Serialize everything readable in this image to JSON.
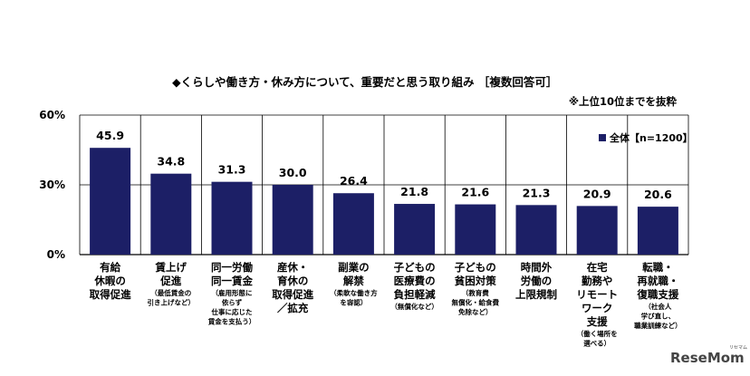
{
  "chart_data": {
    "type": "bar",
    "title": "◆くらしや働き方・休み方について、重要だと思う取り組み ［複数回答可］",
    "note": "※上位10位までを抜粋",
    "ylim": [
      0,
      60
    ],
    "yticks": [
      "0%",
      "30%",
      "60%"
    ],
    "ytick_values": [
      0,
      30,
      60
    ],
    "legend": "全体【n=1200】",
    "legend_placement": "top-right",
    "bar_color": "#1c1f66",
    "categories": [
      {
        "main": [
          "有給",
          "休暇の",
          "取得促進"
        ],
        "sub": []
      },
      {
        "main": [
          "賃上げ",
          "促進"
        ],
        "sub": [
          "（最低賃金の",
          "引き上げなど）"
        ]
      },
      {
        "main": [
          "同一労働",
          "同一賃金"
        ],
        "sub": [
          "（雇用形態に",
          "依らず",
          "仕事に応じた",
          "賃金を支払う）"
        ]
      },
      {
        "main": [
          "産休・",
          "育休の",
          "取得促進",
          "／拡充"
        ],
        "sub": []
      },
      {
        "main": [
          "副業の",
          "解禁"
        ],
        "sub": [
          "（柔軟な働き方",
          "を容認）"
        ]
      },
      {
        "main": [
          "子どもの",
          "医療費の",
          "負担軽減"
        ],
        "sub": [
          "（無償化など）"
        ]
      },
      {
        "main": [
          "子どもの",
          "貧困対策"
        ],
        "sub": [
          "（教育費",
          "無償化・給食費",
          "免除など）"
        ]
      },
      {
        "main": [
          "時間外",
          "労働の",
          "上限規制"
        ],
        "sub": []
      },
      {
        "main": [
          "在宅",
          "勤務や",
          "リモート",
          "ワーク",
          "支援"
        ],
        "sub": [
          "（働く場所を",
          "選べる）"
        ]
      },
      {
        "main": [
          "転職・",
          "再就職・",
          "復職支援"
        ],
        "sub": [
          "（社会人",
          "学び直し、",
          "職業訓練など）"
        ]
      }
    ],
    "values": [
      45.9,
      34.8,
      31.3,
      30.0,
      26.4,
      21.8,
      21.6,
      21.3,
      20.9,
      20.6
    ],
    "value_labels": [
      "45.9",
      "34.8",
      "31.3",
      "30.0",
      "26.4",
      "21.8",
      "21.6",
      "21.3",
      "20.9",
      "20.6"
    ]
  },
  "watermark": {
    "logo": "ReseMom",
    "tagline": "リセマム"
  }
}
